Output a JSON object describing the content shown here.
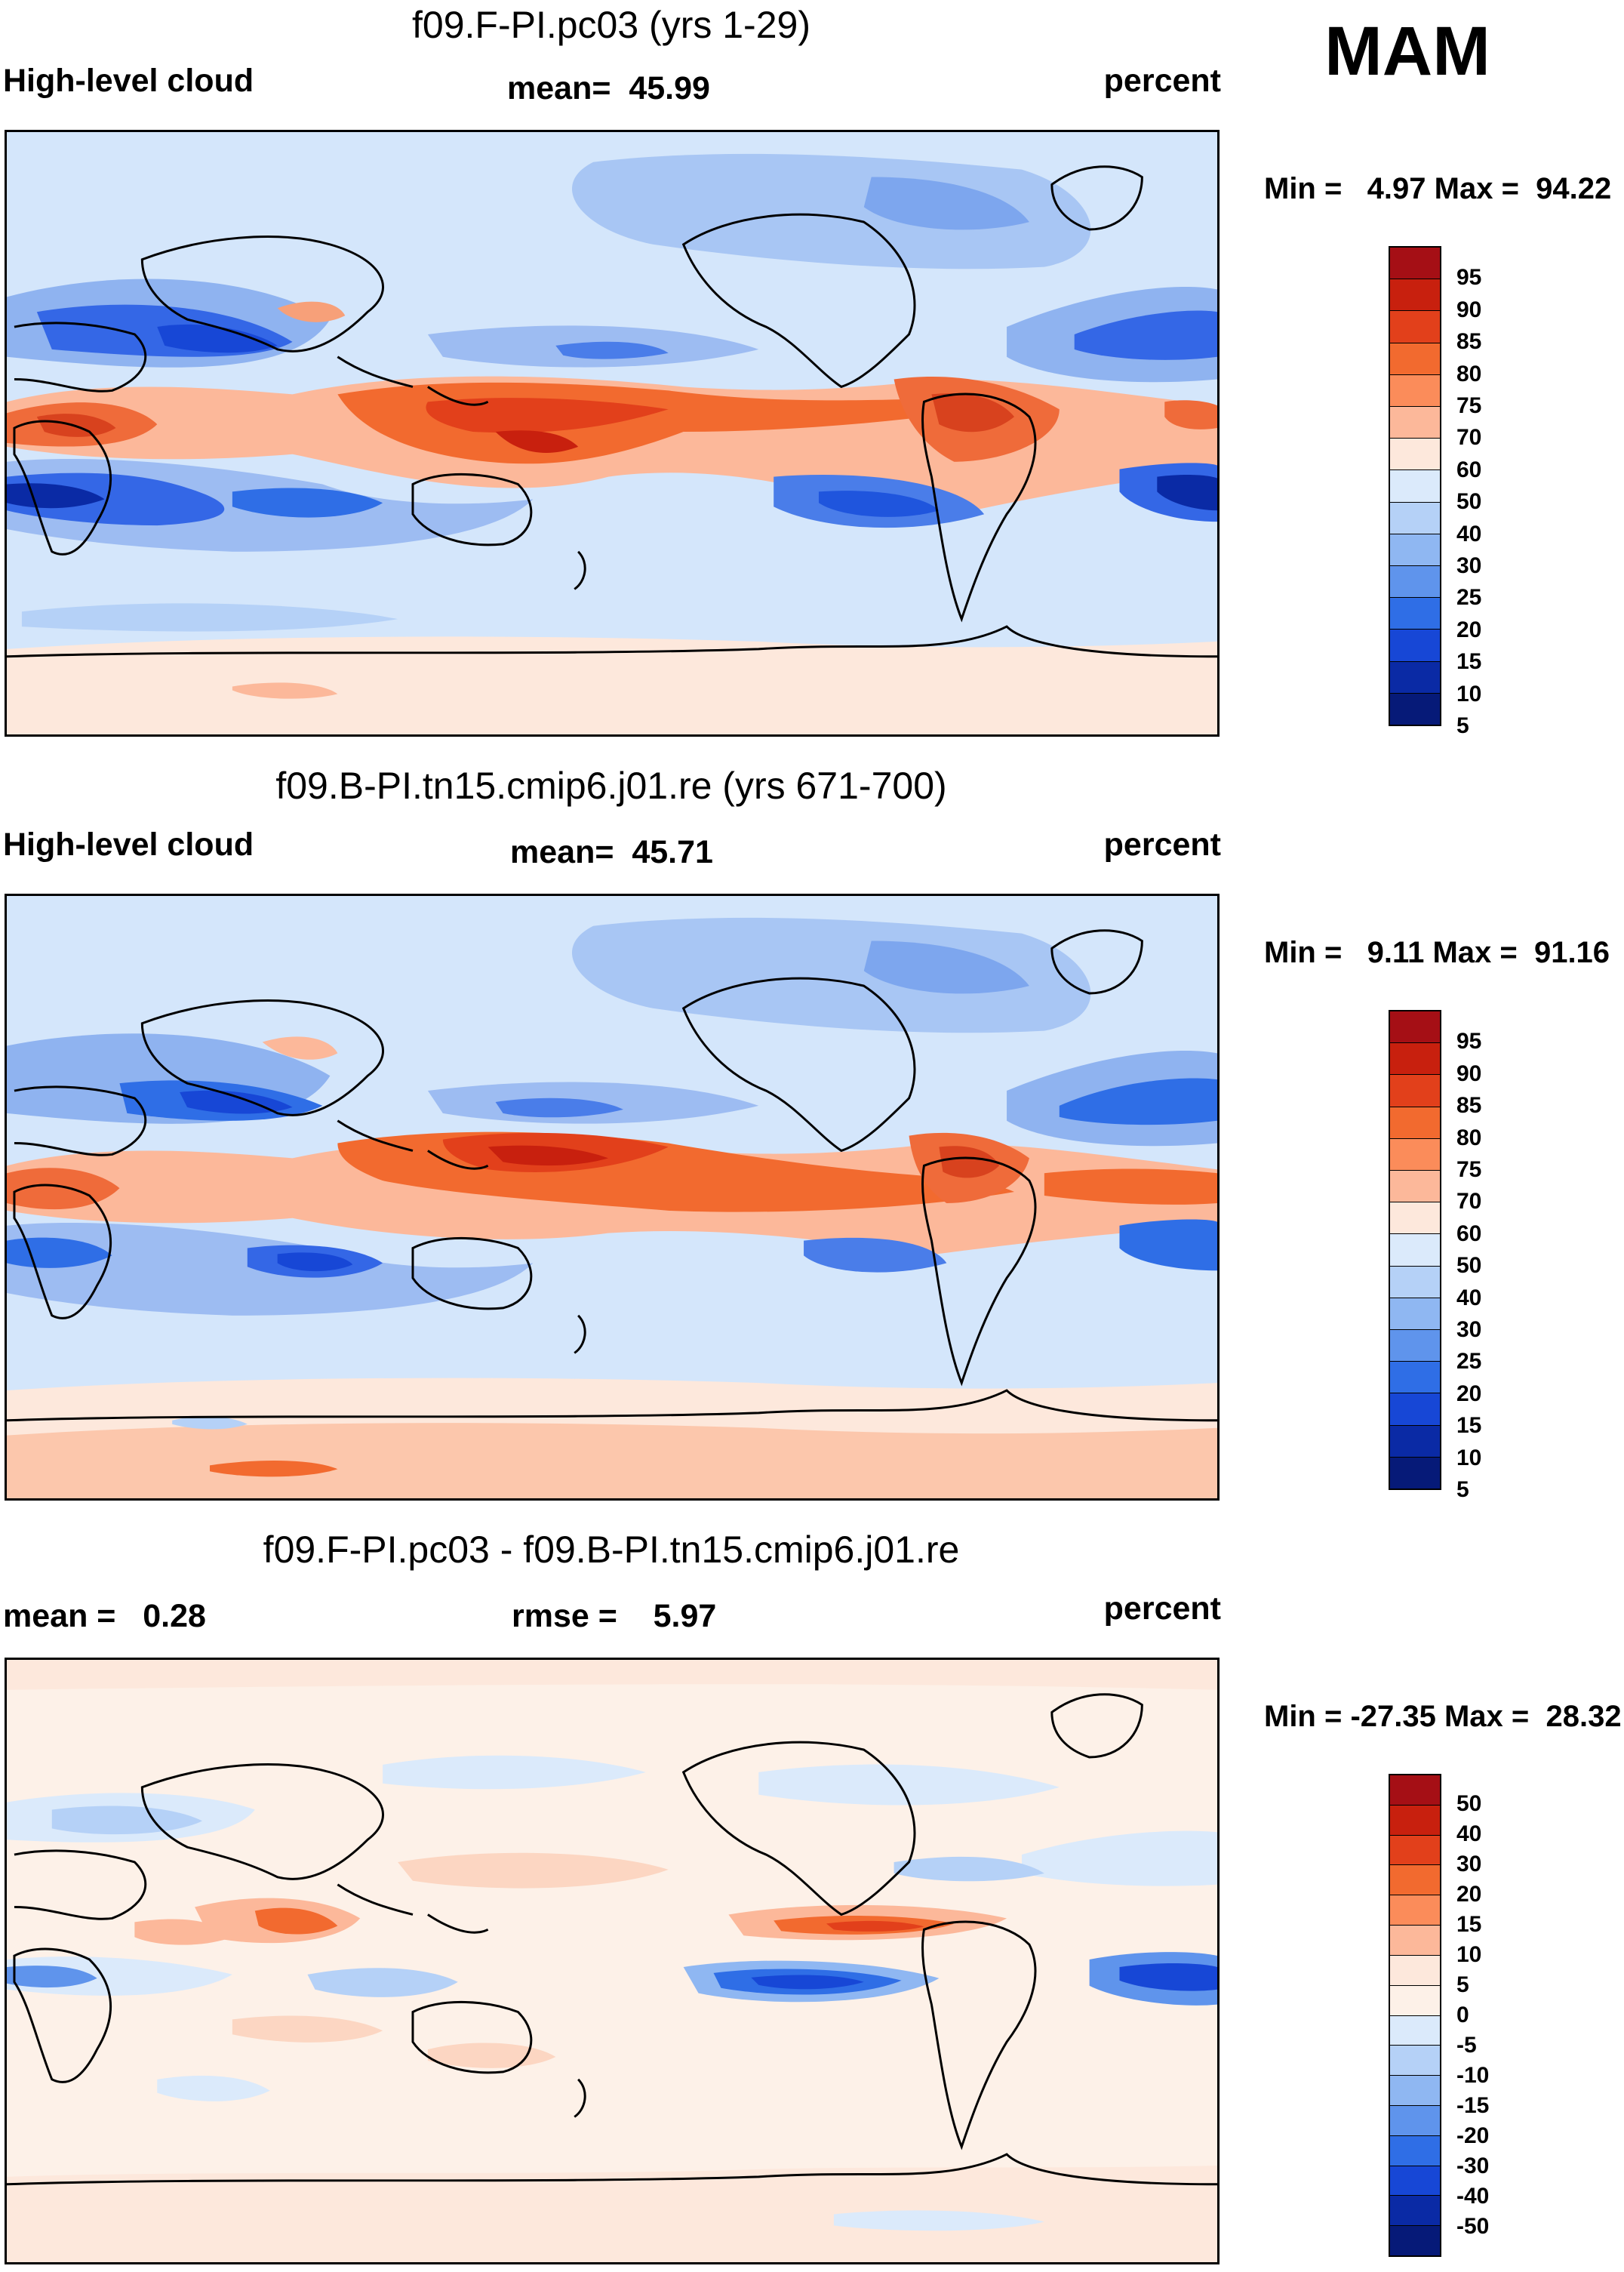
{
  "season": "MAM",
  "panels": [
    {
      "title": "f09.F-PI.pc03 (yrs 1-29)",
      "left_label": "High-level cloud",
      "center_label": "mean=  45.99",
      "right_label": "percent",
      "minmax": "Min =   4.97 Max =  94.22",
      "colorbar": {
        "colors": [
          "#a50f15",
          "#c8200e",
          "#e2401b",
          "#f26a2f",
          "#fb8c5a",
          "#fcb89a",
          "#fde8dc",
          "#dbeafb",
          "#b5d1f7",
          "#8fb7f2",
          "#5f94ec",
          "#2f6ee6",
          "#1747d6",
          "#0a2aa5",
          "#061a78"
        ],
        "labels": [
          "95",
          "90",
          "85",
          "80",
          "75",
          "70",
          "60",
          "50",
          "40",
          "30",
          "25",
          "20",
          "15",
          "10",
          "5"
        ]
      }
    },
    {
      "title": "f09.B-PI.tn15.cmip6.j01.re (yrs 671-700)",
      "left_label": "High-level cloud",
      "center_label": "mean=  45.71",
      "right_label": "percent",
      "minmax": "Min =   9.11 Max =  91.16",
      "colorbar": {
        "colors": [
          "#a50f15",
          "#c8200e",
          "#e2401b",
          "#f26a2f",
          "#fb8c5a",
          "#fcb89a",
          "#fde8dc",
          "#dbeafb",
          "#b5d1f7",
          "#8fb7f2",
          "#5f94ec",
          "#2f6ee6",
          "#1747d6",
          "#0a2aa5",
          "#061a78"
        ],
        "labels": [
          "95",
          "90",
          "85",
          "80",
          "75",
          "70",
          "60",
          "50",
          "40",
          "30",
          "25",
          "20",
          "15",
          "10",
          "5"
        ]
      }
    },
    {
      "title": "f09.F-PI.pc03 - f09.B-PI.tn15.cmip6.j01.re",
      "left_label": "mean =   0.28",
      "center_label": "rmse =    5.97",
      "right_label": "percent",
      "minmax": "Min = -27.35 Max =  28.32",
      "colorbar": {
        "colors": [
          "#a50f15",
          "#c8200e",
          "#e2401b",
          "#f26a2f",
          "#fb8c5a",
          "#fcb89a",
          "#fde8dc",
          "#fdf1e8",
          "#dbeafb",
          "#b5d1f7",
          "#8fb7f2",
          "#5f94ec",
          "#2f6ee6",
          "#1747d6",
          "#0a2aa5",
          "#061a78"
        ],
        "labels": [
          "50",
          "40",
          "30",
          "20",
          "15",
          "10",
          "5",
          "0",
          "-5",
          "-10",
          "-15",
          "-20",
          "-30",
          "-40",
          "-50"
        ]
      }
    }
  ]
}
